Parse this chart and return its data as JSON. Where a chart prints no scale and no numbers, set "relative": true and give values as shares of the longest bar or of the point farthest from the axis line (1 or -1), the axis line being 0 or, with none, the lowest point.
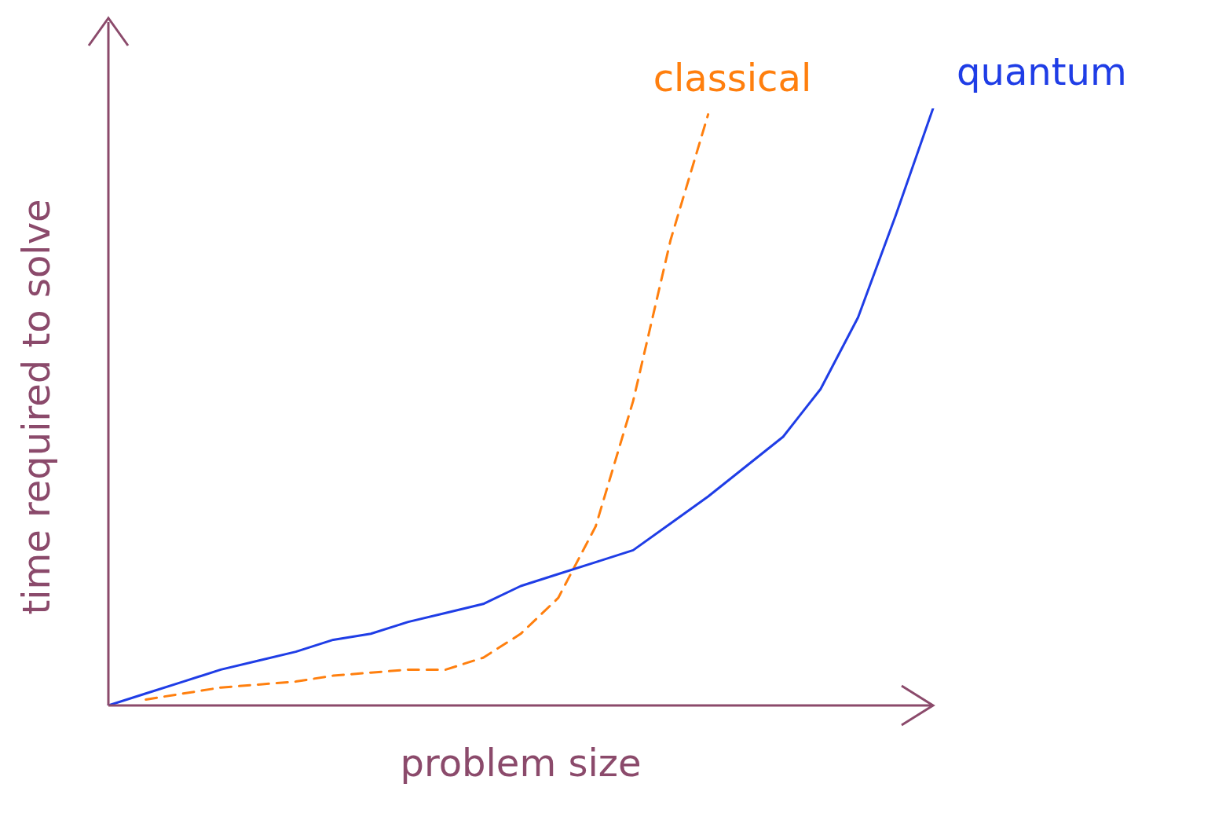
{
  "chart_data": {
    "type": "line",
    "relative": true,
    "xlabel": "problem size",
    "ylabel": "time required to solve",
    "marker": "none",
    "categories": [
      null,
      null,
      null,
      null,
      null,
      null,
      null,
      null,
      null,
      null,
      null,
      null,
      null,
      null,
      null,
      null,
      null,
      null,
      null,
      null,
      null,
      null,
      null
    ],
    "series": [
      {
        "name": "classical",
        "color": "#ff7f0e",
        "line_style": "dashed",
        "values": [
          null,
          0.01,
          0.02,
          0.03,
          0.035,
          0.04,
          0.05,
          0.055,
          0.06,
          0.06,
          0.08,
          0.12,
          0.18,
          0.3,
          0.51,
          0.78,
          0.99,
          null,
          null,
          null,
          null,
          null,
          null
        ]
      },
      {
        "name": "quantum",
        "color": "#1f3de6",
        "line_style": "solid",
        "values": [
          0,
          0.02,
          0.04,
          0.06,
          0.075,
          0.09,
          0.11,
          0.12,
          0.14,
          0.155,
          0.17,
          0.2,
          0.22,
          0.24,
          0.26,
          0.305,
          0.35,
          0.4,
          0.45,
          0.53,
          0.65,
          0.82,
          1
        ]
      }
    ]
  }
}
